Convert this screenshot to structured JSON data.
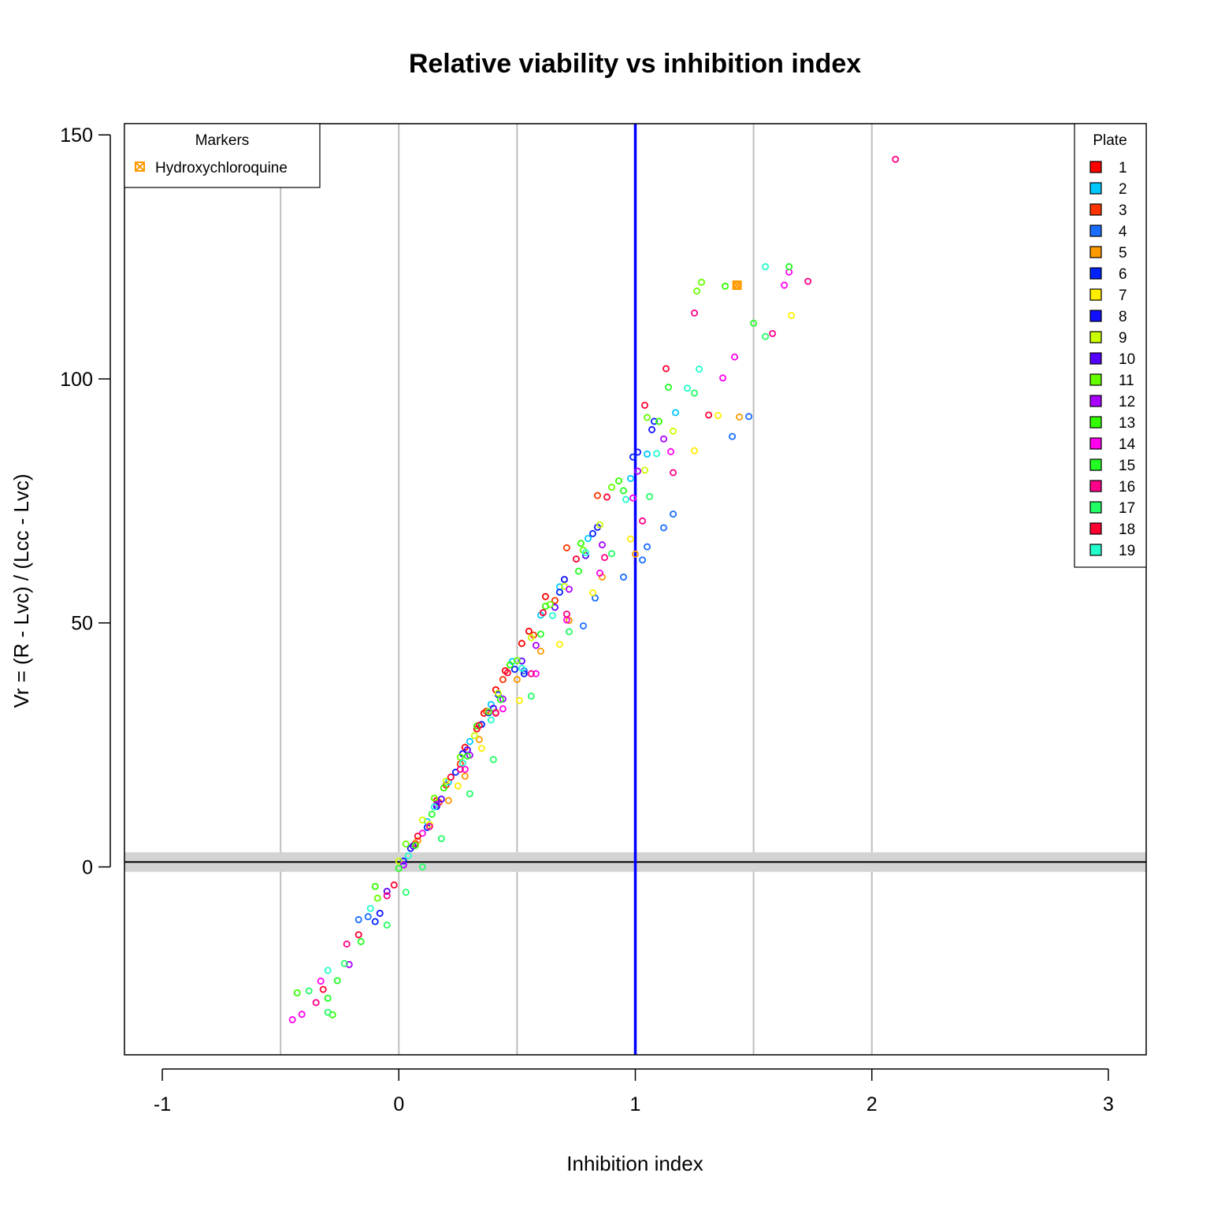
{
  "chart_data": {
    "type": "scatter",
    "title": "Relative viability vs inhibition index",
    "xlabel": "Inhibition index",
    "ylabel": "Vr = (R - Lvc) / (Lcc - Lvc)",
    "xlim": [
      -1.16,
      3.16
    ],
    "ylim": [
      -38.5,
      152.3
    ],
    "x_ticks": [
      -1,
      0,
      1,
      2,
      3
    ],
    "x_tick_labels": [
      "-1",
      "0",
      "1",
      "2",
      "3"
    ],
    "y_ticks": [
      0,
      50,
      100,
      150
    ],
    "y_tick_labels": [
      "0",
      "50",
      "100",
      "150"
    ],
    "vertical_gridlines": [
      -0.5,
      0,
      0.5,
      1.5,
      2
    ],
    "reference_vline": {
      "x": 1,
      "color": "#0000ff"
    },
    "reference_hline": {
      "y": 1,
      "band": [
        -1,
        3
      ],
      "band_color": "#d3d3d3"
    },
    "marker_legend": {
      "title": "Markers",
      "entries": [
        {
          "label": "Hydroxychloroquine",
          "color": "#ff9900",
          "symbol": "boxed-x"
        }
      ],
      "placement": "top-left"
    },
    "plate_legend": {
      "title": "Plate",
      "placement": "top-right",
      "entries": [
        {
          "label": "1",
          "color": "#ff0000"
        },
        {
          "label": "2",
          "color": "#00c8ff"
        },
        {
          "label": "3",
          "color": "#ff3300"
        },
        {
          "label": "4",
          "color": "#1a6eff"
        },
        {
          "label": "5",
          "color": "#ff9900"
        },
        {
          "label": "6",
          "color": "#0022ff"
        },
        {
          "label": "7",
          "color": "#ffee00"
        },
        {
          "label": "8",
          "color": "#1010ff"
        },
        {
          "label": "9",
          "color": "#ccff00"
        },
        {
          "label": "10",
          "color": "#5500ff"
        },
        {
          "label": "11",
          "color": "#66ff00"
        },
        {
          "label": "12",
          "color": "#aa00ff"
        },
        {
          "label": "13",
          "color": "#33ff00"
        },
        {
          "label": "14",
          "color": "#ff00ee"
        },
        {
          "label": "15",
          "color": "#22ff22"
        },
        {
          "label": "16",
          "color": "#ff0088"
        },
        {
          "label": "17",
          "color": "#22ff66"
        },
        {
          "label": "18",
          "color": "#ff0033"
        },
        {
          "label": "19",
          "color": "#22ffcc"
        }
      ]
    },
    "highlighted_points": [
      {
        "series": "Hydroxychloroquine",
        "x": 1.43,
        "y": 119.2
      }
    ],
    "series": [
      {
        "name": "1",
        "points": [
          [
            0.28,
            24.5
          ],
          [
            0.36,
            31.5
          ],
          [
            0.33,
            28.3
          ],
          [
            0.2,
            16.8
          ],
          [
            0.45,
            40.2
          ],
          [
            0.52,
            45.8
          ],
          [
            0.62,
            55.4
          ],
          [
            0.16,
            13.6
          ],
          [
            0.41,
            36.3
          ],
          [
            0.55,
            48.3
          ]
        ]
      },
      {
        "name": "2",
        "points": [
          [
            0.12,
            9.3
          ],
          [
            0.21,
            17.4
          ],
          [
            0.3,
            25.7
          ],
          [
            0.39,
            33.3
          ],
          [
            0.48,
            42.1
          ],
          [
            0.6,
            51.6
          ],
          [
            0.68,
            57.4
          ],
          [
            0.8,
            67.3
          ],
          [
            0.98,
            79.6
          ],
          [
            1.05,
            84.6
          ],
          [
            1.17,
            93.1
          ]
        ]
      },
      {
        "name": "3",
        "points": [
          [
            0.07,
            4.8
          ],
          [
            0.17,
            13.2
          ],
          [
            0.26,
            21.1
          ],
          [
            0.37,
            31.9
          ],
          [
            0.44,
            38.4
          ],
          [
            0.57,
            47.5
          ],
          [
            0.66,
            54.6
          ],
          [
            0.71,
            65.4
          ],
          [
            0.84,
            76.1
          ]
        ]
      },
      {
        "name": "4",
        "points": [
          [
            -0.17,
            -10.8
          ],
          [
            -0.13,
            -10.2
          ],
          [
            0.53,
            40.2
          ],
          [
            0.78,
            49.4
          ],
          [
            0.83,
            55.1
          ],
          [
            0.95,
            59.4
          ],
          [
            1.03,
            62.9
          ],
          [
            1.05,
            65.6
          ],
          [
            1.12,
            69.5
          ],
          [
            1.16,
            72.3
          ],
          [
            1.41,
            88.2
          ],
          [
            1.48,
            92.3
          ]
        ]
      },
      {
        "name": "5",
        "points": [
          [
            0.08,
            5.4
          ],
          [
            0.21,
            13.6
          ],
          [
            0.28,
            18.6
          ],
          [
            0.34,
            26.1
          ],
          [
            0.41,
            31.7
          ],
          [
            0.5,
            38.4
          ],
          [
            0.6,
            44.2
          ],
          [
            0.72,
            50.5
          ],
          [
            0.86,
            59.4
          ],
          [
            1.0,
            64.1
          ],
          [
            1.44,
            92.2
          ],
          [
            1.43,
            119.2
          ]
        ]
      },
      {
        "name": "6",
        "points": [
          [
            -0.1,
            -11.2
          ],
          [
            0.02,
            1.2
          ],
          [
            0.12,
            8.1
          ],
          [
            0.24,
            19.4
          ],
          [
            0.35,
            29.2
          ],
          [
            0.42,
            35.3
          ],
          [
            0.49,
            40.5
          ],
          [
            0.68,
            56.3
          ],
          [
            0.82,
            68.3
          ],
          [
            0.99,
            84.0
          ],
          [
            1.08,
            91.3
          ]
        ]
      },
      {
        "name": "7",
        "points": [
          [
            0.13,
            8.7
          ],
          [
            0.25,
            16.6
          ],
          [
            0.35,
            24.3
          ],
          [
            0.51,
            34.1
          ],
          [
            0.68,
            45.6
          ],
          [
            0.82,
            56.2
          ],
          [
            0.98,
            67.2
          ],
          [
            1.25,
            85.3
          ],
          [
            1.35,
            92.5
          ],
          [
            1.66,
            113.0
          ]
        ]
      },
      {
        "name": "8",
        "points": [
          [
            -0.08,
            -9.5
          ],
          [
            0.05,
            3.8
          ],
          [
            0.16,
            12.4
          ],
          [
            0.27,
            23.2
          ],
          [
            0.38,
            31.6
          ],
          [
            0.53,
            39.6
          ],
          [
            0.7,
            58.9
          ],
          [
            0.84,
            69.6
          ],
          [
            1.01,
            85.0
          ],
          [
            1.07,
            89.6
          ]
        ]
      },
      {
        "name": "9",
        "points": [
          [
            0.0,
            1.2
          ],
          [
            0.1,
            9.6
          ],
          [
            0.2,
            17.6
          ],
          [
            0.32,
            26.9
          ],
          [
            0.42,
            35.6
          ],
          [
            0.56,
            47.0
          ],
          [
            0.7,
            57.5
          ],
          [
            0.85,
            70.1
          ],
          [
            1.04,
            81.3
          ],
          [
            1.16,
            89.3
          ]
        ]
      },
      {
        "name": "10",
        "points": [
          [
            -0.05,
            -5.0
          ],
          [
            0.06,
            4.3
          ],
          [
            0.18,
            13.9
          ],
          [
            0.29,
            24.0
          ],
          [
            0.4,
            32.5
          ],
          [
            0.52,
            42.2
          ],
          [
            0.66,
            53.2
          ],
          [
            0.79,
            63.8
          ]
        ]
      },
      {
        "name": "11",
        "points": [
          [
            -0.09,
            -6.4
          ],
          [
            0.03,
            4.7
          ],
          [
            0.15,
            14.1
          ],
          [
            0.26,
            22.5
          ],
          [
            0.38,
            31.8
          ],
          [
            0.5,
            42.3
          ],
          [
            0.64,
            53.8
          ],
          [
            0.78,
            64.9
          ],
          [
            0.9,
            77.8
          ],
          [
            1.05,
            92.1
          ],
          [
            1.26,
            118.0
          ],
          [
            1.28,
            119.8
          ]
        ]
      },
      {
        "name": "12",
        "points": [
          [
            -0.21,
            -20.0
          ],
          [
            0.02,
            0.4
          ],
          [
            0.16,
            12.8
          ],
          [
            0.3,
            22.9
          ],
          [
            0.44,
            34.4
          ],
          [
            0.58,
            45.4
          ],
          [
            0.72,
            56.9
          ],
          [
            0.86,
            66.0
          ],
          [
            1.01,
            81.1
          ],
          [
            1.12,
            87.7
          ]
        ]
      },
      {
        "name": "13",
        "points": [
          [
            -0.43,
            -25.8
          ],
          [
            -0.28,
            -30.3
          ],
          [
            -0.1,
            -4.0
          ],
          [
            0.07,
            4.4
          ],
          [
            0.19,
            16.2
          ],
          [
            0.33,
            28.9
          ],
          [
            0.47,
            41.4
          ],
          [
            0.62,
            53.4
          ],
          [
            0.77,
            66.3
          ],
          [
            0.93,
            79.1
          ],
          [
            1.1,
            91.3
          ],
          [
            1.38,
            119.0
          ]
        ]
      },
      {
        "name": "14",
        "points": [
          [
            -0.45,
            -31.3
          ],
          [
            -0.41,
            -30.2
          ],
          [
            -0.33,
            -23.4
          ],
          [
            0.1,
            6.9
          ],
          [
            0.28,
            20.0
          ],
          [
            0.44,
            32.4
          ],
          [
            0.58,
            39.6
          ],
          [
            0.71,
            50.6
          ],
          [
            0.85,
            60.2
          ],
          [
            0.99,
            75.6
          ],
          [
            1.15,
            85.1
          ],
          [
            1.37,
            100.2
          ],
          [
            1.42,
            104.5
          ],
          [
            1.63,
            119.2
          ],
          [
            1.65,
            121.9
          ]
        ]
      },
      {
        "name": "15",
        "points": [
          [
            -0.3,
            -26.9
          ],
          [
            -0.26,
            -23.3
          ],
          [
            -0.16,
            -15.3
          ],
          [
            0.0,
            -0.3
          ],
          [
            0.14,
            10.8
          ],
          [
            0.29,
            22.7
          ],
          [
            0.43,
            34.3
          ],
          [
            0.6,
            47.7
          ],
          [
            0.76,
            60.6
          ],
          [
            0.95,
            77.1
          ],
          [
            1.14,
            98.3
          ],
          [
            1.5,
            111.4
          ],
          [
            1.65,
            123.0
          ]
        ]
      },
      {
        "name": "16",
        "points": [
          [
            -0.35,
            -27.8
          ],
          [
            -0.22,
            -15.8
          ],
          [
            -0.05,
            -5.9
          ],
          [
            0.13,
            8.3
          ],
          [
            0.26,
            20.0
          ],
          [
            0.41,
            31.5
          ],
          [
            0.56,
            39.6
          ],
          [
            0.71,
            51.8
          ],
          [
            0.87,
            63.4
          ],
          [
            1.03,
            70.9
          ],
          [
            1.16,
            80.8
          ],
          [
            1.25,
            113.5
          ],
          [
            1.58,
            109.3
          ],
          [
            1.73,
            120.0
          ],
          [
            2.1,
            145.0
          ]
        ]
      },
      {
        "name": "17",
        "points": [
          [
            -0.38,
            -25.4
          ],
          [
            -0.3,
            -29.8
          ],
          [
            -0.23,
            -19.8
          ],
          [
            -0.05,
            -11.9
          ],
          [
            0.03,
            -5.2
          ],
          [
            0.1,
            0.0
          ],
          [
            0.18,
            5.8
          ],
          [
            0.3,
            15.0
          ],
          [
            0.4,
            22.0
          ],
          [
            0.56,
            35.0
          ],
          [
            0.72,
            48.2
          ],
          [
            0.9,
            64.2
          ],
          [
            1.06,
            75.9
          ],
          [
            1.25,
            97.1
          ],
          [
            1.55,
            108.7
          ]
        ]
      },
      {
        "name": "18",
        "points": [
          [
            -0.32,
            -25.1
          ],
          [
            -0.17,
            -13.9
          ],
          [
            -0.02,
            -3.7
          ],
          [
            0.08,
            6.3
          ],
          [
            0.22,
            18.4
          ],
          [
            0.34,
            29.0
          ],
          [
            0.46,
            39.8
          ],
          [
            0.61,
            52.1
          ],
          [
            0.75,
            63.1
          ],
          [
            0.88,
            75.8
          ],
          [
            1.04,
            94.6
          ],
          [
            1.13,
            102.1
          ],
          [
            1.31,
            92.6
          ]
        ]
      },
      {
        "name": "19",
        "points": [
          [
            -0.3,
            -21.2
          ],
          [
            -0.12,
            -8.5
          ],
          [
            0.04,
            2.3
          ],
          [
            0.15,
            12.3
          ],
          [
            0.27,
            21.3
          ],
          [
            0.39,
            30.1
          ],
          [
            0.52,
            40.7
          ],
          [
            0.65,
            51.5
          ],
          [
            0.79,
            64.4
          ],
          [
            0.96,
            75.3
          ],
          [
            1.09,
            84.7
          ],
          [
            1.22,
            98.1
          ],
          [
            1.27,
            102.0
          ],
          [
            1.55,
            123.0
          ]
        ]
      }
    ]
  }
}
